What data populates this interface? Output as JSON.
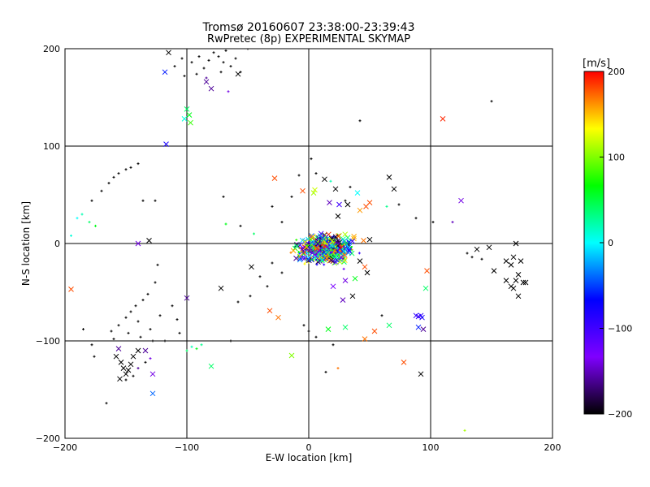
{
  "chart_data": {
    "type": "scatter",
    "title": "Tromsø 20160607 23:38:00-23:39:43",
    "subtitle": "RwPretec (8p) EXPERIMENTAL SKYMAP",
    "xlabel": "E-W location [km]",
    "ylabel": "N-S location [km]",
    "xlim": [
      -200,
      200
    ],
    "ylim": [
      -200,
      200
    ],
    "xticks": [
      -200,
      -100,
      0,
      100,
      200
    ],
    "yticks": [
      -200,
      -100,
      0,
      100,
      200
    ],
    "x_tick_labels": [
      "−200",
      "−100",
      "0",
      "100",
      "200"
    ],
    "y_tick_labels": [
      "−200",
      "−100",
      "0",
      "100",
      "200"
    ],
    "grid": true,
    "colorbar": {
      "label": "[m/s]",
      "range": [
        -200,
        200
      ],
      "ticks": [
        200,
        100,
        0,
        -100,
        -200
      ],
      "tick_labels": [
        "200",
        "100",
        "0",
        "−100",
        "−200"
      ],
      "colormap": [
        "#000000",
        "#7f00ff",
        "#0000ff",
        "#00ffff",
        "#00ff00",
        "#ffff00",
        "#ff0000"
      ]
    },
    "cluster_note": "Dense central cluster near (0..30, -20..10) km composed of hundreds of points of all velocities",
    "points": [
      {
        "x": -195,
        "y": -47,
        "v": 180,
        "m": "x"
      },
      {
        "x": -185,
        "y": -88,
        "v": -200,
        "m": "+"
      },
      {
        "x": -140,
        "y": 0,
        "v": -140,
        "m": "x"
      },
      {
        "x": -131,
        "y": 3,
        "v": -200,
        "m": "x"
      },
      {
        "x": -118,
        "y": 176,
        "v": -60,
        "m": "x"
      },
      {
        "x": -117,
        "y": 102,
        "v": -80,
        "m": "x"
      },
      {
        "x": -115,
        "y": 196,
        "v": -200,
        "m": "x"
      },
      {
        "x": -102,
        "y": 128,
        "v": 10,
        "m": "x"
      },
      {
        "x": -100,
        "y": 138,
        "v": 40,
        "m": "x"
      },
      {
        "x": -98,
        "y": 132,
        "v": 60,
        "m": "x"
      },
      {
        "x": -97,
        "y": 124,
        "v": 80,
        "m": "x"
      },
      {
        "x": -100,
        "y": -56,
        "v": -160,
        "m": "x"
      },
      {
        "x": -80,
        "y": 159,
        "v": -160,
        "m": "x"
      },
      {
        "x": -84,
        "y": 166,
        "v": -160,
        "m": "x"
      },
      {
        "x": -80,
        "y": -126,
        "v": 40,
        "m": "x"
      },
      {
        "x": -72,
        "y": -46,
        "v": -200,
        "m": "x"
      },
      {
        "x": -58,
        "y": 174,
        "v": -200,
        "m": "x"
      },
      {
        "x": -47,
        "y": -24,
        "v": -200,
        "m": "x"
      },
      {
        "x": -32,
        "y": -69,
        "v": 180,
        "m": "x"
      },
      {
        "x": -28,
        "y": 67,
        "v": 180,
        "m": "x"
      },
      {
        "x": -25,
        "y": -76,
        "v": 170,
        "m": "x"
      },
      {
        "x": -14,
        "y": -115,
        "v": 100,
        "m": "x"
      },
      {
        "x": -5,
        "y": 54,
        "v": 180,
        "m": "x"
      },
      {
        "x": 4,
        "y": 52,
        "v": 110,
        "m": "x"
      },
      {
        "x": 5,
        "y": 55,
        "v": 120,
        "m": "x"
      },
      {
        "x": 13,
        "y": 66,
        "v": -200,
        "m": "x"
      },
      {
        "x": 17,
        "y": 42,
        "v": -150,
        "m": "x"
      },
      {
        "x": 22,
        "y": 56,
        "v": -200,
        "m": "x"
      },
      {
        "x": 25,
        "y": 40,
        "v": -100,
        "m": "x"
      },
      {
        "x": 24,
        "y": 28,
        "v": -200,
        "m": "x"
      },
      {
        "x": 32,
        "y": 40,
        "v": -200,
        "m": "x"
      },
      {
        "x": 40,
        "y": 52,
        "v": 0,
        "m": "x"
      },
      {
        "x": 42,
        "y": 34,
        "v": 160,
        "m": "x"
      },
      {
        "x": 47,
        "y": 38,
        "v": 180,
        "m": "x"
      },
      {
        "x": 50,
        "y": 42,
        "v": 180,
        "m": "x"
      },
      {
        "x": 66,
        "y": 68,
        "v": -200,
        "m": "x"
      },
      {
        "x": 70,
        "y": 56,
        "v": -200,
        "m": "x"
      },
      {
        "x": 110,
        "y": 128,
        "v": 190,
        "m": "x"
      },
      {
        "x": 125,
        "y": 44,
        "v": -140,
        "m": "x"
      },
      {
        "x": 37,
        "y": 5,
        "v": 150,
        "m": "x"
      },
      {
        "x": 45,
        "y": 3,
        "v": 170,
        "m": "x"
      },
      {
        "x": 50,
        "y": 4,
        "v": -200,
        "m": "x"
      },
      {
        "x": 25,
        "y": 8,
        "v": 110,
        "m": "x"
      },
      {
        "x": 32,
        "y": 6,
        "v": 40,
        "m": "x"
      },
      {
        "x": 42,
        "y": -18,
        "v": -200,
        "m": "x"
      },
      {
        "x": 46,
        "y": -24,
        "v": 180,
        "m": "x"
      },
      {
        "x": 48,
        "y": -30,
        "v": -200,
        "m": "x"
      },
      {
        "x": 38,
        "y": -36,
        "v": 60,
        "m": "x"
      },
      {
        "x": 30,
        "y": -38,
        "v": -140,
        "m": "x"
      },
      {
        "x": 20,
        "y": -44,
        "v": -130,
        "m": "x"
      },
      {
        "x": 28,
        "y": -58,
        "v": -150,
        "m": "x"
      },
      {
        "x": 36,
        "y": -54,
        "v": -200,
        "m": "x"
      },
      {
        "x": 16,
        "y": -88,
        "v": 60,
        "m": "x"
      },
      {
        "x": 30,
        "y": -86,
        "v": 40,
        "m": "x"
      },
      {
        "x": 46,
        "y": -98,
        "v": 170,
        "m": "x"
      },
      {
        "x": 54,
        "y": -90,
        "v": 180,
        "m": "x"
      },
      {
        "x": 66,
        "y": -84,
        "v": 40,
        "m": "x"
      },
      {
        "x": 78,
        "y": -122,
        "v": 180,
        "m": "x"
      },
      {
        "x": 88,
        "y": -74,
        "v": -90,
        "m": "x"
      },
      {
        "x": 90,
        "y": -75,
        "v": -100,
        "m": "x"
      },
      {
        "x": 92,
        "y": -74,
        "v": -90,
        "m": "x"
      },
      {
        "x": 93,
        "y": -76,
        "v": -80,
        "m": "x"
      },
      {
        "x": 90,
        "y": -86,
        "v": -60,
        "m": "x"
      },
      {
        "x": 94,
        "y": -88,
        "v": -160,
        "m": "x"
      },
      {
        "x": 96,
        "y": -46,
        "v": 40,
        "m": "x"
      },
      {
        "x": 97,
        "y": -28,
        "v": 180,
        "m": "x"
      },
      {
        "x": 92,
        "y": -134,
        "v": -200,
        "m": "x"
      },
      {
        "x": 138,
        "y": -6,
        "v": -200,
        "m": "x"
      },
      {
        "x": 148,
        "y": -4,
        "v": -200,
        "m": "x"
      },
      {
        "x": 152,
        "y": -28,
        "v": -200,
        "m": "x"
      },
      {
        "x": 162,
        "y": -18,
        "v": -200,
        "m": "x"
      },
      {
        "x": 166,
        "y": -22,
        "v": -200,
        "m": "x"
      },
      {
        "x": 168,
        "y": -14,
        "v": -200,
        "m": "x"
      },
      {
        "x": 170,
        "y": 0,
        "v": -200,
        "m": "x"
      },
      {
        "x": 174,
        "y": -18,
        "v": -200,
        "m": "x"
      },
      {
        "x": 162,
        "y": -38,
        "v": -200,
        "m": "x"
      },
      {
        "x": 166,
        "y": -44,
        "v": -200,
        "m": "x"
      },
      {
        "x": 168,
        "y": -46,
        "v": -200,
        "m": "x"
      },
      {
        "x": 170,
        "y": -38,
        "v": -200,
        "m": "x"
      },
      {
        "x": 172,
        "y": -32,
        "v": -200,
        "m": "x"
      },
      {
        "x": 176,
        "y": -40,
        "v": -200,
        "m": "x"
      },
      {
        "x": 178,
        "y": -40,
        "v": -200,
        "m": "x"
      },
      {
        "x": 172,
        "y": -54,
        "v": -200,
        "m": "x"
      },
      {
        "x": -156,
        "y": -108,
        "v": -160,
        "m": "x"
      },
      {
        "x": -158,
        "y": -116,
        "v": -200,
        "m": "x"
      },
      {
        "x": -154,
        "y": -122,
        "v": -200,
        "m": "x"
      },
      {
        "x": -152,
        "y": -128,
        "v": -200,
        "m": "x"
      },
      {
        "x": -150,
        "y": -134,
        "v": -200,
        "m": "x"
      },
      {
        "x": -148,
        "y": -130,
        "v": -200,
        "m": "x"
      },
      {
        "x": -146,
        "y": -124,
        "v": -200,
        "m": "x"
      },
      {
        "x": -144,
        "y": -116,
        "v": -200,
        "m": "x"
      },
      {
        "x": -155,
        "y": -139,
        "v": -200,
        "m": "x"
      },
      {
        "x": -140,
        "y": -110,
        "v": -200,
        "m": "x"
      },
      {
        "x": -134,
        "y": -110,
        "v": -160,
        "m": "x"
      },
      {
        "x": -128,
        "y": -134,
        "v": -140,
        "m": "x"
      },
      {
        "x": -128,
        "y": -154,
        "v": -40,
        "m": "x"
      },
      {
        "x": -70,
        "y": 48,
        "v": -200,
        "m": "+"
      },
      {
        "x": -68,
        "y": 20,
        "v": 60,
        "m": "+"
      },
      {
        "x": -56,
        "y": 18,
        "v": -200,
        "m": "+"
      },
      {
        "x": -45,
        "y": 10,
        "v": 40,
        "m": "+"
      },
      {
        "x": 2,
        "y": 87,
        "v": -200,
        "m": "+"
      },
      {
        "x": 42,
        "y": 126,
        "v": -200,
        "m": "+"
      },
      {
        "x": 118,
        "y": 22,
        "v": -150,
        "m": "+"
      },
      {
        "x": 128,
        "y": -192,
        "v": 110,
        "m": "+"
      },
      {
        "x": 150,
        "y": 146,
        "v": -200,
        "m": "+"
      },
      {
        "x": -166,
        "y": -164,
        "v": -200,
        "m": "+"
      },
      {
        "x": -195,
        "y": 8,
        "v": 10,
        "m": "+"
      },
      {
        "x": -190,
        "y": 26,
        "v": 0,
        "m": "+"
      },
      {
        "x": -186,
        "y": 30,
        "v": 20,
        "m": "+"
      },
      {
        "x": -180,
        "y": 22,
        "v": 40,
        "m": "+"
      },
      {
        "x": -175,
        "y": 18,
        "v": 60,
        "m": "+"
      },
      {
        "x": -178,
        "y": 44,
        "v": -200,
        "m": "+"
      },
      {
        "x": -170,
        "y": 54,
        "v": -200,
        "m": "+"
      },
      {
        "x": -164,
        "y": 62,
        "v": -200,
        "m": "+"
      },
      {
        "x": -160,
        "y": 68,
        "v": -200,
        "m": "+"
      },
      {
        "x": -156,
        "y": 72,
        "v": -200,
        "m": "+"
      },
      {
        "x": -150,
        "y": 76,
        "v": -200,
        "m": "+"
      },
      {
        "x": -146,
        "y": 78,
        "v": -200,
        "m": "+"
      },
      {
        "x": -140,
        "y": 82,
        "v": -200,
        "m": "+"
      },
      {
        "x": -136,
        "y": 44,
        "v": -200,
        "m": "+"
      },
      {
        "x": -126,
        "y": 44,
        "v": -200,
        "m": "+"
      },
      {
        "x": -178,
        "y": -104,
        "v": -200,
        "m": "+"
      },
      {
        "x": -176,
        "y": -116,
        "v": -200,
        "m": "+"
      },
      {
        "x": -162,
        "y": -90,
        "v": -200,
        "m": "+"
      },
      {
        "x": -160,
        "y": -98,
        "v": -200,
        "m": "+"
      },
      {
        "x": -156,
        "y": -84,
        "v": -200,
        "m": "+"
      },
      {
        "x": -150,
        "y": -76,
        "v": -200,
        "m": "+"
      },
      {
        "x": -148,
        "y": -92,
        "v": -200,
        "m": "+"
      },
      {
        "x": -146,
        "y": -70,
        "v": -200,
        "m": "+"
      },
      {
        "x": -142,
        "y": -64,
        "v": -200,
        "m": "+"
      },
      {
        "x": -140,
        "y": -80,
        "v": -200,
        "m": "+"
      },
      {
        "x": -138,
        "y": -96,
        "v": -200,
        "m": "+"
      },
      {
        "x": -136,
        "y": -58,
        "v": -200,
        "m": "+"
      },
      {
        "x": -132,
        "y": -52,
        "v": -200,
        "m": "+"
      },
      {
        "x": -130,
        "y": -88,
        "v": -200,
        "m": "+"
      },
      {
        "x": -126,
        "y": -40,
        "v": -200,
        "m": "+"
      },
      {
        "x": -124,
        "y": -22,
        "v": -200,
        "m": "+"
      },
      {
        "x": -122,
        "y": -74,
        "v": -200,
        "m": "+"
      },
      {
        "x": -118,
        "y": -100,
        "v": -200,
        "m": "+"
      },
      {
        "x": -112,
        "y": -64,
        "v": -200,
        "m": "+"
      },
      {
        "x": -108,
        "y": -78,
        "v": -200,
        "m": "+"
      },
      {
        "x": -106,
        "y": -92,
        "v": -200,
        "m": "+"
      },
      {
        "x": -150,
        "y": -140,
        "v": -200,
        "m": "+"
      },
      {
        "x": -144,
        "y": -136,
        "v": -200,
        "m": "+"
      },
      {
        "x": -140,
        "y": -128,
        "v": -160,
        "m": "+"
      },
      {
        "x": -134,
        "y": -122,
        "v": -200,
        "m": "+"
      },
      {
        "x": -130,
        "y": -118,
        "v": -140,
        "m": "+"
      },
      {
        "x": -128,
        "y": -100,
        "v": -200,
        "m": "+"
      },
      {
        "x": -100,
        "y": -110,
        "v": 40,
        "m": "+"
      },
      {
        "x": -96,
        "y": -106,
        "v": 20,
        "m": "+"
      },
      {
        "x": -92,
        "y": -108,
        "v": 60,
        "m": "+"
      },
      {
        "x": -88,
        "y": -104,
        "v": 30,
        "m": "+"
      },
      {
        "x": -110,
        "y": 182,
        "v": -200,
        "m": "+"
      },
      {
        "x": -104,
        "y": 190,
        "v": -200,
        "m": "+"
      },
      {
        "x": -96,
        "y": 186,
        "v": -200,
        "m": "+"
      },
      {
        "x": -90,
        "y": 192,
        "v": -200,
        "m": "+"
      },
      {
        "x": -86,
        "y": 180,
        "v": -200,
        "m": "+"
      },
      {
        "x": -82,
        "y": 188,
        "v": -200,
        "m": "+"
      },
      {
        "x": -78,
        "y": 196,
        "v": -200,
        "m": "+"
      },
      {
        "x": -74,
        "y": 192,
        "v": -200,
        "m": "+"
      },
      {
        "x": -70,
        "y": 186,
        "v": -200,
        "m": "+"
      },
      {
        "x": -68,
        "y": 198,
        "v": -200,
        "m": "+"
      },
      {
        "x": -64,
        "y": 182,
        "v": -200,
        "m": "+"
      },
      {
        "x": -60,
        "y": 190,
        "v": -200,
        "m": "+"
      },
      {
        "x": -56,
        "y": 176,
        "v": -200,
        "m": "+"
      },
      {
        "x": -84,
        "y": 170,
        "v": -160,
        "m": "+"
      },
      {
        "x": -92,
        "y": 174,
        "v": -200,
        "m": "+"
      },
      {
        "x": -102,
        "y": 172,
        "v": -200,
        "m": "+"
      },
      {
        "x": -72,
        "y": 176,
        "v": -200,
        "m": "+"
      },
      {
        "x": -66,
        "y": 156,
        "v": -140,
        "m": "+"
      },
      {
        "x": -50,
        "y": 200,
        "v": -200,
        "m": "+"
      },
      {
        "x": -64,
        "y": -100,
        "v": -200,
        "m": "+"
      },
      {
        "x": -58,
        "y": -60,
        "v": -200,
        "m": "+"
      },
      {
        "x": -48,
        "y": -54,
        "v": -200,
        "m": "+"
      },
      {
        "x": -40,
        "y": -34,
        "v": -200,
        "m": "+"
      },
      {
        "x": -34,
        "y": -44,
        "v": -200,
        "m": "+"
      },
      {
        "x": -30,
        "y": -20,
        "v": -200,
        "m": "+"
      },
      {
        "x": -22,
        "y": -30,
        "v": -200,
        "m": "+"
      },
      {
        "x": -4,
        "y": -84,
        "v": -200,
        "m": "+"
      },
      {
        "x": 0,
        "y": -90,
        "v": -200,
        "m": "+"
      },
      {
        "x": 6,
        "y": -96,
        "v": -200,
        "m": "+"
      },
      {
        "x": 20,
        "y": -104,
        "v": -200,
        "m": "+"
      },
      {
        "x": 24,
        "y": -128,
        "v": 170,
        "m": "+"
      },
      {
        "x": 14,
        "y": -132,
        "v": -200,
        "m": "+"
      },
      {
        "x": 60,
        "y": -74,
        "v": -200,
        "m": "+"
      },
      {
        "x": 88,
        "y": 26,
        "v": -200,
        "m": "+"
      },
      {
        "x": 102,
        "y": 22,
        "v": -200,
        "m": "+"
      },
      {
        "x": 64,
        "y": 38,
        "v": 30,
        "m": "+"
      },
      {
        "x": 74,
        "y": 40,
        "v": -200,
        "m": "+"
      },
      {
        "x": 130,
        "y": -10,
        "v": -200,
        "m": "+"
      },
      {
        "x": 134,
        "y": -14,
        "v": -200,
        "m": "+"
      },
      {
        "x": 142,
        "y": -16,
        "v": -200,
        "m": "+"
      },
      {
        "x": -30,
        "y": 38,
        "v": -200,
        "m": "+"
      },
      {
        "x": -22,
        "y": 22,
        "v": -200,
        "m": "+"
      },
      {
        "x": -14,
        "y": 48,
        "v": -200,
        "m": "+"
      },
      {
        "x": -8,
        "y": 70,
        "v": -200,
        "m": "+"
      },
      {
        "x": 6,
        "y": 72,
        "v": -200,
        "m": "+"
      },
      {
        "x": 18,
        "y": 64,
        "v": 20,
        "m": "+"
      },
      {
        "x": 30,
        "y": 44,
        "v": -200,
        "m": "+"
      },
      {
        "x": 34,
        "y": 58,
        "v": -200,
        "m": "+"
      }
    ]
  }
}
